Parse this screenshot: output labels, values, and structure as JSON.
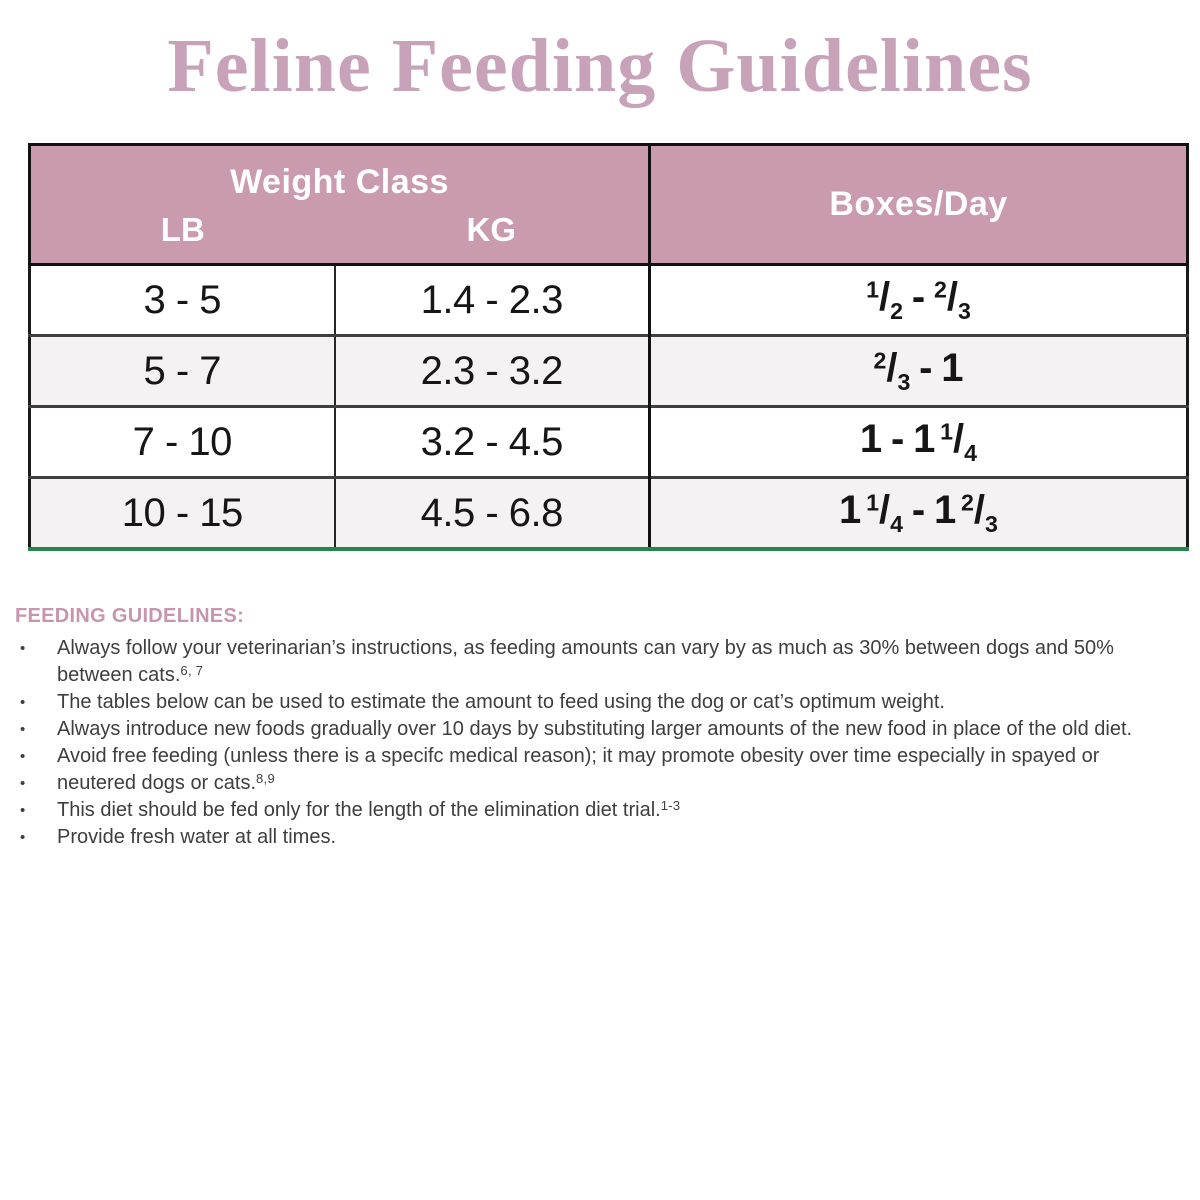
{
  "title": "Feline Feeding Guidelines",
  "colors": {
    "title_pink": "#c8a2b8",
    "header_mauve": "#ca9aae",
    "heading_pink": "#c795ae",
    "green_accent": "#23874d",
    "alt_row_bg": "#f5f2f3",
    "body_text": "#3e3e3e"
  },
  "table": {
    "header": {
      "weight_class_label": "Weight Class",
      "lb_label": "LB",
      "kg_label": "KG",
      "boxes_per_day_label": "Boxes/Day"
    },
    "rows": [
      {
        "lb": "3 - 5",
        "kg": "1.4 - 2.3",
        "boxes_tokens": [
          {
            "frac": [
              "1",
              "2"
            ]
          },
          {
            "sep": "-"
          },
          {
            "frac": [
              "2",
              "3"
            ]
          }
        ]
      },
      {
        "lb": "5 - 7",
        "kg": "2.3 - 3.2",
        "boxes_tokens": [
          {
            "frac": [
              "2",
              "3"
            ]
          },
          {
            "sep": "-"
          },
          {
            "int": "1"
          }
        ]
      },
      {
        "lb": "7 - 10",
        "kg": "3.2 - 4.5",
        "boxes_tokens": [
          {
            "int": "1"
          },
          {
            "sep": "-"
          },
          {
            "int": "1"
          },
          {
            "frac": [
              "1",
              "4"
            ]
          }
        ]
      },
      {
        "lb": "10 - 15",
        "kg": "4.5 - 6.8",
        "boxes_tokens": [
          {
            "int": "1"
          },
          {
            "frac": [
              "1",
              "4"
            ]
          },
          {
            "sep": "-"
          },
          {
            "int": "1"
          },
          {
            "frac": [
              "2",
              "3"
            ]
          }
        ]
      }
    ]
  },
  "guidelines": {
    "heading": "FEEDING GUIDELINES:",
    "bullets": [
      {
        "text": "Always follow your veterinarian’s instructions, as feeding amounts can vary by as much as 30% between dogs and 50% between cats.",
        "sup": "6, 7"
      },
      {
        "text": "The tables below can be used to estimate the amount to feed using the dog or cat’s optimum weight.",
        "sup": ""
      },
      {
        "text": "Always introduce new foods gradually over 10 days by substituting larger amounts of the new food in place of the old diet.",
        "sup": ""
      },
      {
        "text": "Avoid free feeding (unless there is a specifc medical reason); it may promote obesity over time especially in spayed or",
        "sup": ""
      },
      {
        "text": "neutered dogs or cats.",
        "sup": "8,9"
      },
      {
        "text": "This diet should be fed only for the length of the elimination diet trial.",
        "sup": "1-3"
      },
      {
        "text": "Provide fresh water at all times.",
        "sup": ""
      }
    ]
  }
}
